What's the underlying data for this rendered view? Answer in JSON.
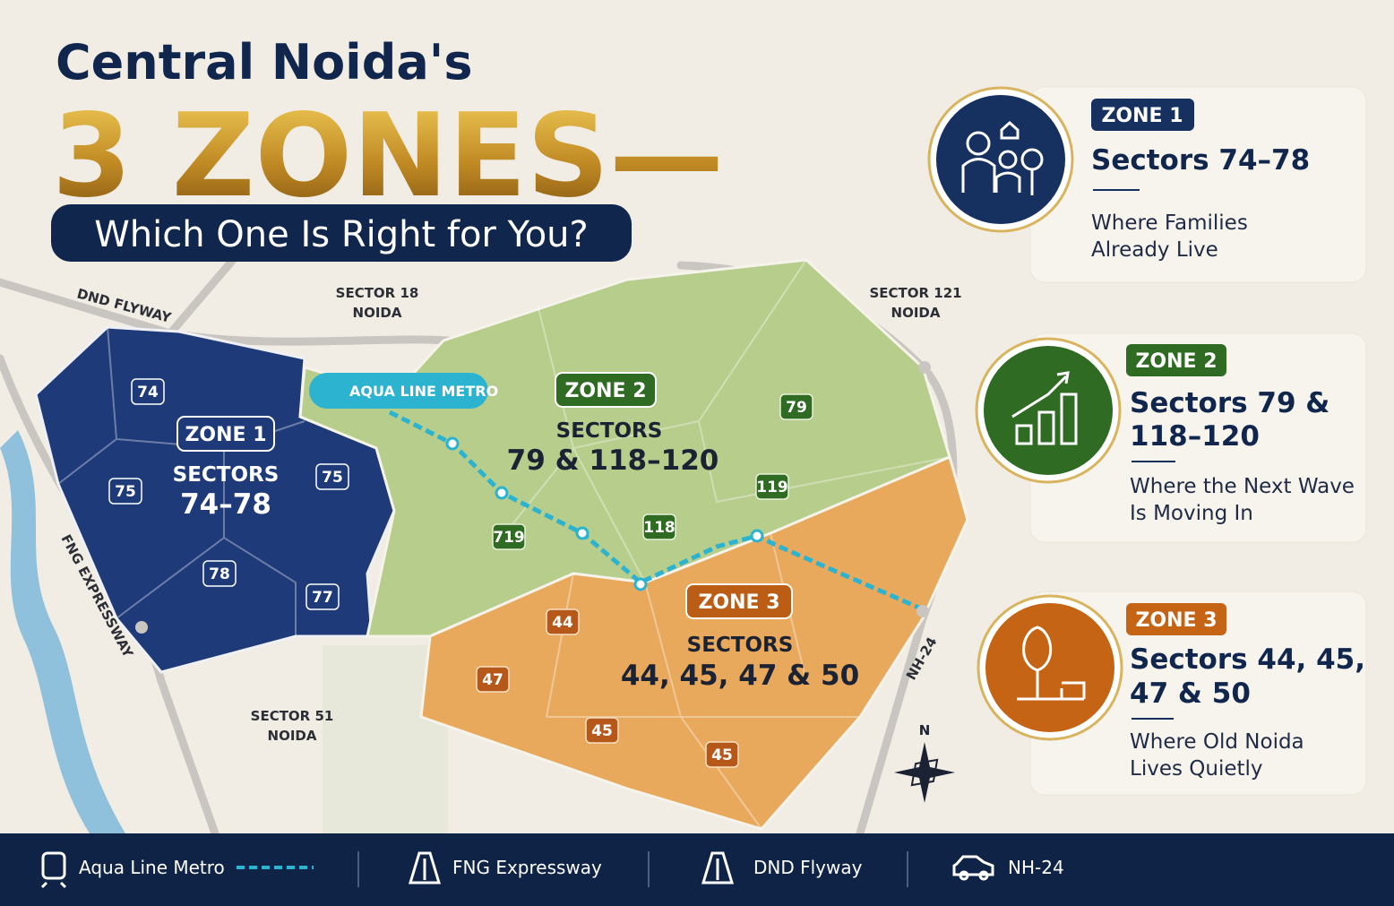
{
  "header": {
    "title": "Central Noida's",
    "headline": "3 ZONES—",
    "tagline": "Which One Is Right for You?"
  },
  "map": {
    "roads": {
      "dnd": "DND FLYWAY",
      "fng": "FNG EXPRESSWAY",
      "nh": "NH-24"
    },
    "metro": "AQUA LINE METRO",
    "places": [
      [
        "SECTOR 18",
        "NOIDA"
      ],
      [
        "SECTOR 121",
        "NOIDA"
      ],
      [
        "SECTOR 51",
        "NOIDA"
      ]
    ],
    "zones": [
      {
        "label": "ZONE 1",
        "heading": "SECTORS",
        "sectors": "74–78",
        "badges": [
          "74",
          "75",
          "75",
          "78",
          "77"
        ]
      },
      {
        "label": "ZONE 2",
        "heading": "SECTORS",
        "sectors": "79 & 118–120",
        "badges": [
          "79",
          "119",
          "118",
          "719"
        ]
      },
      {
        "label": "ZONE 3",
        "heading": "SECTORS",
        "sectors": "44, 45, 47 & 50",
        "badges": [
          "44",
          "47",
          "45",
          "45"
        ]
      }
    ],
    "compass": "N"
  },
  "cards": [
    {
      "tag": "ZONE 1",
      "title": [
        "Sectors 74–78"
      ],
      "description": [
        "Where Families",
        "Already Live"
      ]
    },
    {
      "tag": "ZONE 2",
      "title": [
        "Sectors 79 &",
        "118–120"
      ],
      "description": [
        "Where the Next Wave",
        "Is Moving In"
      ]
    },
    {
      "tag": "ZONE 3",
      "title": [
        "Sectors 44, 45,",
        "47 & 50"
      ],
      "description": [
        "Where Old Noida",
        "Lives Quietly"
      ]
    }
  ],
  "legend": [
    "Aqua Line Metro",
    "FNG Expressway",
    "DND Flyway",
    "NH-24"
  ]
}
